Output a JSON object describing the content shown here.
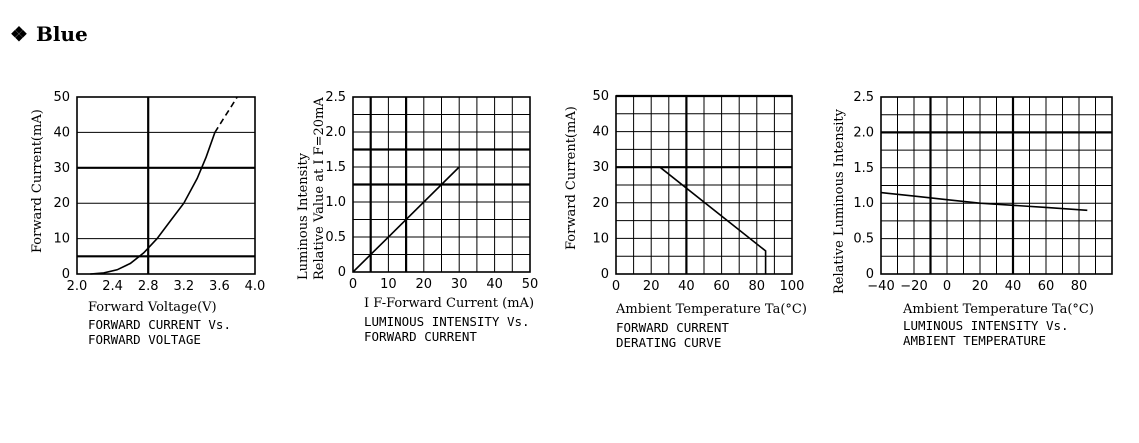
{
  "header": {
    "bullet": "❖",
    "title": "Blue"
  },
  "chart_data": [
    {
      "type": "line",
      "xlabel": "Forward Voltage(V)",
      "ylabel": "Forward Current(mA)",
      "caption_lines": [
        "FORWARD CURRENT Vs.",
        "FORWARD VOLTAGE"
      ],
      "xlim": [
        2.0,
        4.0
      ],
      "ylim": [
        0,
        50
      ],
      "xticks": [
        "2.0",
        "2.4",
        "2.8",
        "3.2",
        "3.6",
        "4.0"
      ],
      "yticks": [
        "0",
        "10",
        "20",
        "30",
        "40",
        "50"
      ],
      "series": [
        {
          "x": [
            2.15,
            2.3,
            2.45,
            2.6,
            2.75,
            2.9,
            3.05,
            3.2,
            3.35,
            3.45,
            3.55
          ],
          "y": [
            0,
            0.3,
            1.2,
            3,
            6,
            10,
            15,
            20,
            27,
            33,
            40
          ],
          "style": "solid"
        },
        {
          "x": [
            3.55,
            3.65,
            3.75,
            3.8
          ],
          "y": [
            40,
            44,
            48,
            50
          ],
          "style": "dashed"
        }
      ]
    },
    {
      "type": "line",
      "xlabel": "I F-Forward Current (mA)",
      "ylabel_lines": [
        "Luminous Intensity",
        "Relative Value at I F=20mA"
      ],
      "caption_lines": [
        "LUMINOUS INTENSITY Vs.",
        "FORWARD CURRENT"
      ],
      "xlim": [
        0,
        50
      ],
      "ylim": [
        0,
        2.5
      ],
      "xticks": [
        "0",
        "10",
        "20",
        "30",
        "40",
        "50"
      ],
      "yticks": [
        "0",
        "0.5",
        "1.0",
        "1.5",
        "2.0",
        "2.5"
      ],
      "series": [
        {
          "x": [
            0,
            30
          ],
          "y": [
            0,
            1.5
          ],
          "style": "solid"
        }
      ]
    },
    {
      "type": "line",
      "xlabel": "Ambient Temperature Ta(°C)",
      "ylabel": "Forward Current(mA)",
      "caption_lines": [
        "FORWARD CURRENT",
        "DERATING CURVE"
      ],
      "xlim": [
        0,
        100
      ],
      "ylim": [
        0,
        50
      ],
      "xticks": [
        "0",
        "20",
        "40",
        "60",
        "80",
        "100"
      ],
      "yticks": [
        "0",
        "10",
        "20",
        "30",
        "40",
        "50"
      ],
      "series": [
        {
          "x": [
            0,
            25,
            85,
            85
          ],
          "y": [
            30,
            30,
            6.5,
            0
          ],
          "style": "solid"
        }
      ]
    },
    {
      "type": "line",
      "xlabel": "Ambient Temperature Ta(°C)",
      "ylabel": "Relative Luminous Intensity",
      "caption_lines": [
        "LUMINOUS INTENSITY Vs.",
        "AMBIENT TEMPERATURE"
      ],
      "xlim": [
        -40,
        100
      ],
      "ylim": [
        0,
        2.5
      ],
      "xticks": [
        "−40",
        "−20",
        "0",
        "20",
        "40",
        "60",
        "80"
      ],
      "yticks": [
        "0",
        "0.5",
        "1.0",
        "1.5",
        "2.0",
        "2.5"
      ],
      "series": [
        {
          "x": [
            -40,
            -20,
            0,
            20,
            40,
            60,
            85
          ],
          "y": [
            1.15,
            1.1,
            1.05,
            1.0,
            0.97,
            0.94,
            0.9
          ],
          "style": "solid"
        }
      ]
    }
  ]
}
